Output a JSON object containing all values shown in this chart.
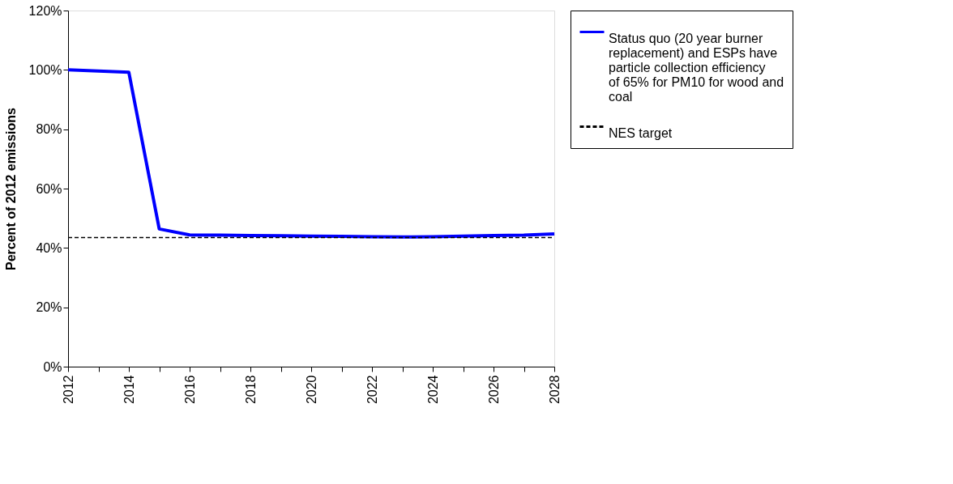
{
  "chart_data": {
    "type": "line",
    "ylabel": "Percent of 2012 emissions",
    "x": [
      2012,
      2013,
      2014,
      2015,
      2016,
      2017,
      2018,
      2019,
      2020,
      2021,
      2022,
      2023,
      2024,
      2025,
      2026,
      2027,
      2028
    ],
    "series": [
      {
        "name": "Status quo (20 year burner replacement) and ESPs have particle collection efficiency of 65% for PM10 for wood and coal",
        "color": "#0000ff",
        "line_style": "solid",
        "values": [
          100,
          99.6,
          99.2,
          46.4,
          44.4,
          44.3,
          44.2,
          44.1,
          44.0,
          43.9,
          43.8,
          43.7,
          43.8,
          44.0,
          44.2,
          44.3,
          44.7
        ]
      },
      {
        "name": "NES target",
        "color": "#000000",
        "line_style": "dashed",
        "values": [
          43.5,
          43.5,
          43.5,
          43.5,
          43.5,
          43.5,
          43.5,
          43.5,
          43.5,
          43.5,
          43.5,
          43.5,
          43.5,
          43.5,
          43.5,
          43.5,
          43.5
        ]
      }
    ],
    "xlim": [
      2012,
      2028
    ],
    "xticks": [
      2012,
      {
        "value": 2013,
        "label": null
      },
      2014,
      {
        "value": 2015,
        "label": null
      },
      2016,
      {
        "value": 2017,
        "label": null
      },
      2018,
      {
        "value": 2019,
        "label": null
      },
      2020,
      {
        "value": 2021,
        "label": null
      },
      2022,
      {
        "value": 2023,
        "label": null
      },
      2024,
      {
        "value": 2025,
        "label": null
      },
      2026,
      {
        "value": 2027,
        "label": null
      },
      2028
    ],
    "ylim": [
      0,
      120
    ],
    "yticks": [
      {
        "value": 0,
        "label": "0%"
      },
      {
        "value": 20,
        "label": "20%"
      },
      {
        "value": 40,
        "label": "40%"
      },
      {
        "value": 60,
        "label": "60%"
      },
      {
        "value": 80,
        "label": "80%"
      },
      {
        "value": 100,
        "label": "100%"
      },
      {
        "value": 120,
        "label": "120%"
      }
    ],
    "grid": false,
    "legend": "right",
    "marker": "none"
  }
}
